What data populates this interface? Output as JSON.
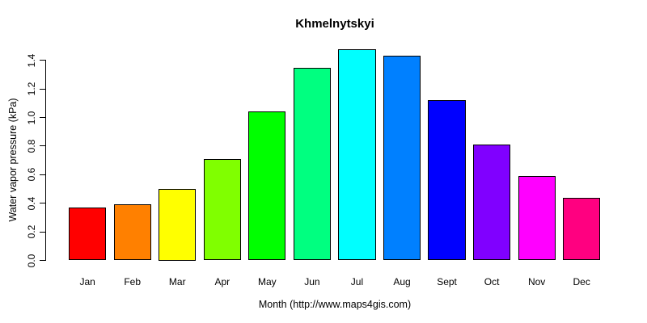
{
  "title": "Khmelnytskyi",
  "chart_data": {
    "type": "bar",
    "title": "Khmelnytskyi",
    "xlabel": "Month (http://www.maps4gis.com)",
    "ylabel": "Water vapor pressure (kPa)",
    "categories": [
      "Jan",
      "Feb",
      "Mar",
      "Apr",
      "May",
      "Jun",
      "Jul",
      "Aug",
      "Sept",
      "Oct",
      "Nov",
      "Dec"
    ],
    "values": [
      0.37,
      0.39,
      0.5,
      0.71,
      1.04,
      1.35,
      1.48,
      1.43,
      1.12,
      0.81,
      0.59,
      0.44
    ],
    "bar_colors": [
      "#FF0000",
      "#FF8000",
      "#FFFF00",
      "#80FF00",
      "#00FF00",
      "#00FF80",
      "#00FFFF",
      "#0080FF",
      "#0000FF",
      "#8000FF",
      "#FF00FF",
      "#FF0080"
    ],
    "bar_border_color": "#000000",
    "ylim": [
      0,
      1.4
    ],
    "yticks": [
      0.0,
      0.2,
      0.4,
      0.6,
      0.8,
      1.0,
      1.2,
      1.4
    ],
    "grid": false,
    "legend": false,
    "background": "#FFFFFF",
    "axis_color": "#000000"
  }
}
